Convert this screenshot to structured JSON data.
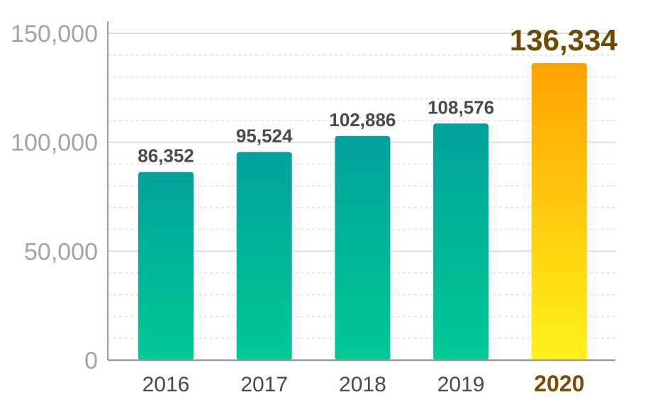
{
  "chart_data": {
    "type": "bar",
    "categories": [
      "2016",
      "2017",
      "2018",
      "2019",
      "2020"
    ],
    "values": [
      86352,
      95524,
      102886,
      108576,
      136334
    ],
    "value_labels": [
      "86,352",
      "95,524",
      "102,886",
      "108,576",
      "136,334"
    ],
    "highlight_index": 4,
    "ylim": [
      0,
      150000
    ],
    "y_ticks": [
      0,
      50000,
      100000,
      150000
    ],
    "y_tick_labels": [
      "0",
      "50,000",
      "100,000",
      "150,000"
    ],
    "grid": true,
    "title": "",
    "xlabel": "",
    "ylabel": "",
    "colors": {
      "bar_top": "#00a19b",
      "bar_bottom": "#00c994",
      "highlight_top": "#ffa200",
      "highlight_bottom": "#fff21b",
      "highlight_text": "#6e4a05",
      "axis": "#9a9a9a",
      "grid": "#dcdcdc"
    }
  }
}
